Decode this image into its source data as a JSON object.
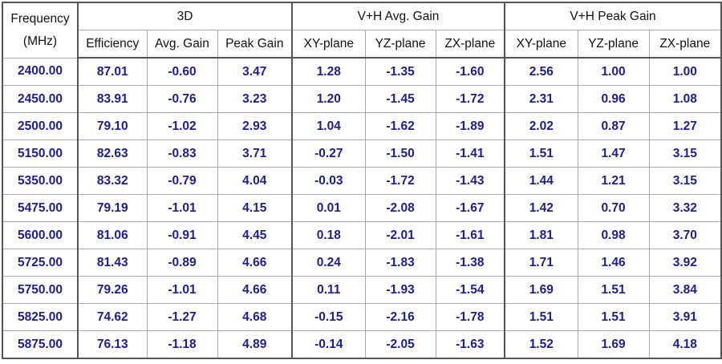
{
  "table": {
    "header": {
      "frequency_label_line1": "Frequency",
      "frequency_label_line2": "(MHz)",
      "groups": [
        "3D",
        "V+H Avg. Gain",
        "V+H Peak Gain"
      ],
      "columns": [
        "Efficiency",
        "Avg. Gain",
        "Peak Gain",
        "XY-plane",
        "YZ-plane",
        "ZX-plane",
        "XY-plane",
        "YZ-plane",
        "ZX-plane"
      ]
    },
    "rows": [
      [
        "2400.00",
        "87.01",
        "-0.60",
        "3.47",
        "1.28",
        "-1.35",
        "-1.60",
        "2.56",
        "1.00",
        "1.00"
      ],
      [
        "2450.00",
        "83.91",
        "-0.76",
        "3.23",
        "1.20",
        "-1.45",
        "-1.72",
        "2.31",
        "0.96",
        "1.08"
      ],
      [
        "2500.00",
        "79.10",
        "-1.02",
        "2.93",
        "1.04",
        "-1.62",
        "-1.89",
        "2.02",
        "0.87",
        "1.27"
      ],
      [
        "5150.00",
        "82.63",
        "-0.83",
        "3.71",
        "-0.27",
        "-1.50",
        "-1.41",
        "1.51",
        "1.47",
        "3.15"
      ],
      [
        "5350.00",
        "83.32",
        "-0.79",
        "4.04",
        "-0.03",
        "-1.72",
        "-1.43",
        "1.44",
        "1.21",
        "3.15"
      ],
      [
        "5475.00",
        "79.19",
        "-1.01",
        "4.15",
        "0.01",
        "-2.08",
        "-1.67",
        "1.42",
        "0.70",
        "3.32"
      ],
      [
        "5600.00",
        "81.06",
        "-0.91",
        "4.45",
        "0.18",
        "-2.01",
        "-1.61",
        "1.81",
        "0.98",
        "3.70"
      ],
      [
        "5725.00",
        "81.43",
        "-0.89",
        "4.66",
        "0.24",
        "-1.83",
        "-1.38",
        "1.71",
        "1.46",
        "3.92"
      ],
      [
        "5750.00",
        "79.26",
        "-1.01",
        "4.66",
        "0.11",
        "-1.93",
        "-1.54",
        "1.69",
        "1.51",
        "3.84"
      ],
      [
        "5825.00",
        "74.62",
        "-1.27",
        "4.68",
        "-0.15",
        "-2.16",
        "-1.78",
        "1.51",
        "1.51",
        "3.91"
      ],
      [
        "5875.00",
        "76.13",
        "-1.18",
        "4.89",
        "-0.14",
        "-2.05",
        "-1.63",
        "1.52",
        "1.69",
        "4.18"
      ]
    ]
  },
  "colors": {
    "value_text": "#1e1e8c",
    "header_text": "#111111",
    "grid": "#a9a9a9"
  }
}
